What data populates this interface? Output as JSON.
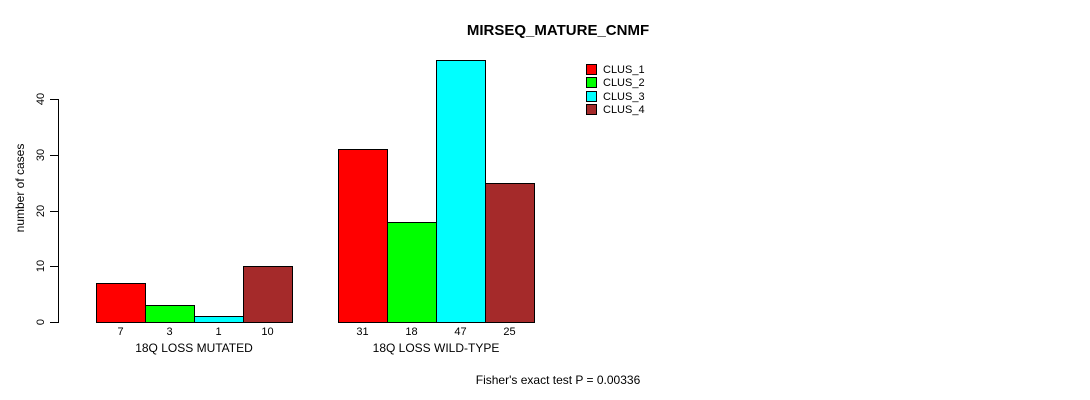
{
  "title": "MIRSEQ_MATURE_CNMF",
  "footer_note": "Fisher's exact test P = 0.00336",
  "chart_data": {
    "type": "bar",
    "title": "MIRSEQ_MATURE_CNMF",
    "xlabel": "",
    "ylabel": "number of cases",
    "ylim": [
      0,
      47
    ],
    "yticks": [
      0,
      10,
      20,
      30,
      40
    ],
    "grid": false,
    "legend_position": "top-right",
    "categories": [
      "18Q LOSS MUTATED",
      "18Q LOSS WILD-TYPE"
    ],
    "series": [
      {
        "name": "CLUS_1",
        "color": "#FF0000",
        "values": [
          7,
          31
        ]
      },
      {
        "name": "CLUS_2",
        "color": "#00FF00",
        "values": [
          3,
          18
        ]
      },
      {
        "name": "CLUS_3",
        "color": "#00FFFF",
        "values": [
          1,
          47
        ]
      },
      {
        "name": "CLUS_4",
        "color": "#A52A2A",
        "values": [
          10,
          25
        ]
      }
    ],
    "bar_value_labels": [
      [
        7,
        3,
        1,
        10
      ],
      [
        31,
        18,
        47,
        25
      ]
    ],
    "annotation": "Fisher's exact test P = 0.00336"
  }
}
